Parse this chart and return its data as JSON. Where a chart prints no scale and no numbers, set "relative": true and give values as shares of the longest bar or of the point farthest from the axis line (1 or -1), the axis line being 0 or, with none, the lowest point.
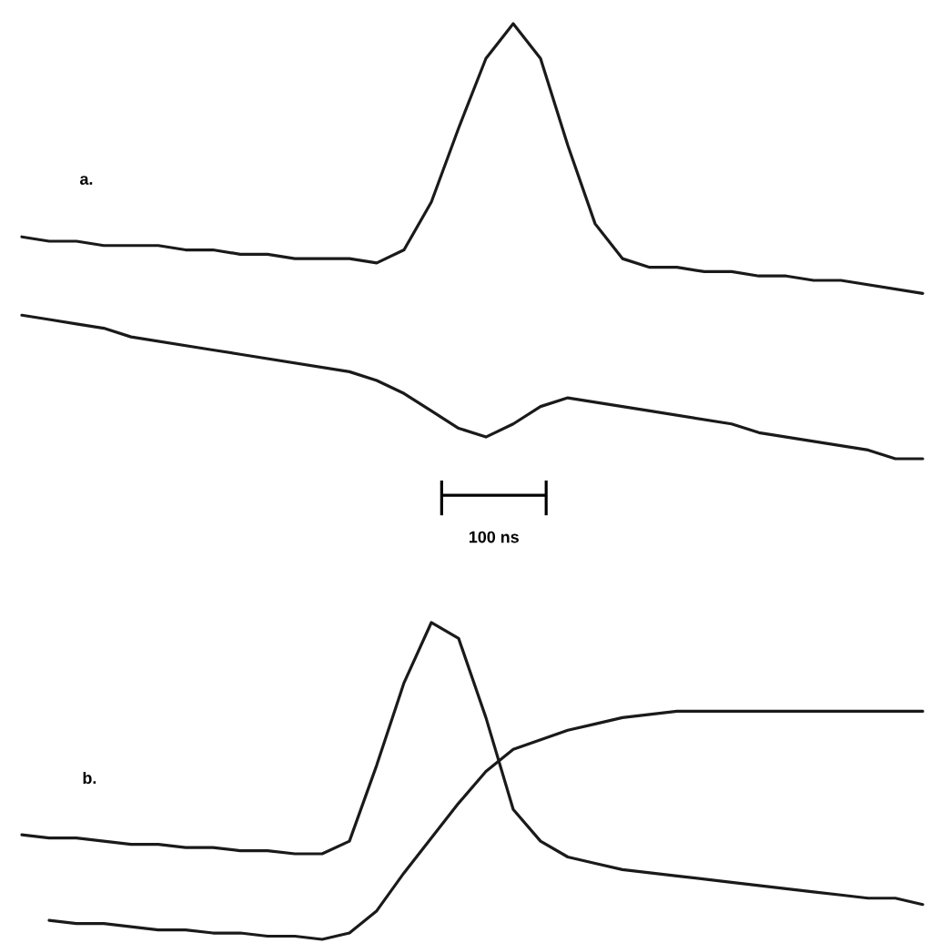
{
  "chart_data": [
    {
      "type": "line",
      "title": "a.",
      "relative": true,
      "categories": [
        null,
        null,
        null,
        null,
        null,
        null,
        null,
        null,
        null,
        null,
        null,
        null,
        null,
        null,
        null,
        null,
        null,
        null,
        null,
        null,
        null,
        null,
        null,
        null,
        null,
        null,
        null,
        null,
        null,
        null,
        null,
        null,
        null,
        null
      ],
      "series": [
        {
          "color": "#1a1a1a",
          "values": [
            0.51,
            0.5,
            0.5,
            0.49,
            0.49,
            0.49,
            0.48,
            0.48,
            0.47,
            0.47,
            0.46,
            0.46,
            0.46,
            0.45,
            0.48,
            0.59,
            0.76,
            0.92,
            1.0,
            0.92,
            0.72,
            0.54,
            0.46,
            0.44,
            0.44,
            0.43,
            0.43,
            0.42,
            0.42,
            0.41,
            0.41,
            0.4,
            0.39,
            0.38
          ]
        },
        {
          "color": "#1a1a1a",
          "values": [
            0.33,
            0.32,
            0.31,
            0.3,
            0.28,
            0.27,
            0.26,
            0.25,
            0.24,
            0.23,
            0.22,
            0.21,
            0.2,
            0.18,
            0.15,
            0.11,
            0.07,
            0.05,
            0.08,
            0.12,
            0.14,
            0.13,
            0.12,
            0.11,
            0.1,
            0.09,
            0.08,
            0.06,
            0.05,
            0.04,
            0.03,
            0.02,
            0.0,
            0.0
          ]
        }
      ],
      "annotations": [
        "100 ns"
      ]
    },
    {
      "type": "line",
      "title": "b.",
      "relative": true,
      "categories": [
        null,
        null,
        null,
        null,
        null,
        null,
        null,
        null,
        null,
        null,
        null,
        null,
        null,
        null,
        null,
        null,
        null,
        null,
        null,
        null,
        null,
        null,
        null,
        null,
        null,
        null,
        null,
        null,
        null,
        null,
        null,
        null,
        null,
        null
      ],
      "series": [
        {
          "color": "#1a1a1a",
          "values": [
            0.33,
            0.32,
            0.32,
            0.31,
            0.3,
            0.3,
            0.29,
            0.29,
            0.28,
            0.28,
            0.27,
            0.27,
            0.31,
            0.55,
            0.81,
            1.0,
            0.95,
            0.7,
            0.41,
            0.31,
            0.26,
            0.24,
            0.22,
            0.21,
            0.2,
            0.19,
            0.18,
            0.17,
            0.16,
            0.15,
            0.14,
            0.13,
            0.13,
            0.11
          ]
        },
        {
          "color": "#1a1a1a",
          "values": [
            null,
            0.06,
            0.05,
            0.05,
            0.04,
            0.03,
            0.03,
            0.02,
            0.02,
            0.01,
            0.01,
            0.0,
            0.02,
            0.09,
            0.21,
            0.32,
            0.43,
            0.53,
            0.6,
            0.63,
            0.66,
            0.68,
            0.7,
            0.71,
            0.72,
            0.72,
            0.72,
            0.72,
            0.72,
            0.72,
            0.72,
            0.72,
            0.72,
            0.72
          ]
        }
      ]
    }
  ]
}
